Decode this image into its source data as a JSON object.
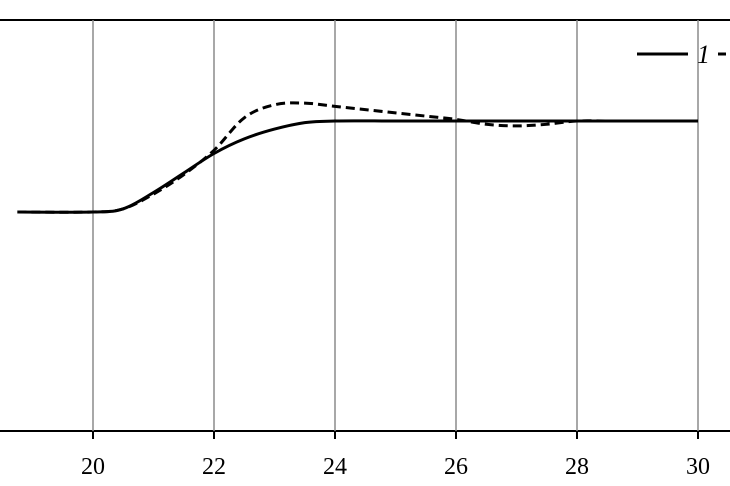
{
  "chart_data": {
    "type": "line",
    "title": "",
    "xlabel": "",
    "ylabel": "",
    "xlim": [
      18.5,
      30.5
    ],
    "ylim": [
      -0.5,
      1.0
    ],
    "grid": "vertical",
    "xticks": [
      20,
      22,
      24,
      26,
      28,
      30
    ],
    "xtick_labels": [
      "20",
      "22",
      "24",
      "26",
      "28",
      "30"
    ],
    "legend": {
      "placement": "top-right",
      "entries": [
        "1"
      ]
    },
    "series": [
      {
        "name": "1",
        "style": "solid",
        "color": "#000000",
        "x": [
          18.75,
          20.0,
          20.5,
          21.0,
          21.5,
          22.0,
          22.5,
          23.0,
          23.5,
          24.0,
          25.0,
          26.0,
          27.0,
          28.0,
          29.0,
          30.0
        ],
        "y": [
          0.0,
          0.0,
          0.02,
          0.12,
          0.24,
          0.36,
          0.45,
          0.51,
          0.55,
          0.56,
          0.56,
          0.56,
          0.56,
          0.56,
          0.56,
          0.56
        ]
      },
      {
        "style": "dashed",
        "color": "#000000",
        "x": [
          18.75,
          20.0,
          20.5,
          21.0,
          21.5,
          22.0,
          22.5,
          23.0,
          23.5,
          24.0,
          24.5,
          25.0,
          25.5,
          26.0,
          26.5,
          27.0,
          27.5,
          28.0,
          28.5,
          29.0,
          30.0
        ],
        "y": [
          0.0,
          0.0,
          0.02,
          0.11,
          0.23,
          0.38,
          0.58,
          0.66,
          0.67,
          0.65,
          0.63,
          0.61,
          0.59,
          0.57,
          0.54,
          0.53,
          0.54,
          0.56,
          0.56,
          0.56,
          0.56
        ]
      }
    ]
  }
}
